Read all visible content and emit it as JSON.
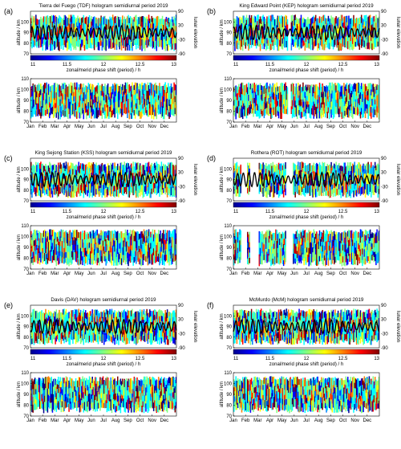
{
  "figure": {
    "colors": {
      "line": "#000000",
      "colormap": [
        "#00008f",
        "#0000ff",
        "#0080ff",
        "#00ffff",
        "#80ff80",
        "#ffff00",
        "#ff8000",
        "#ff0000",
        "#800000"
      ]
    }
  },
  "chart_data": [
    {
      "type": "heatmap",
      "panel_label": "(a)",
      "title": "Tierra del Fuego (TDF) hologram semidiurnal period 2019",
      "ylabel": "altitude / km",
      "ylabel_right": "lunar elevation",
      "colorbar_label": "zonal/merid phase shift (period) / h",
      "colorbar_ticks": [
        "11",
        "11.5",
        "12",
        "12.5",
        "13"
      ],
      "clim": [
        11,
        13
      ],
      "upper_yticks": [
        "70",
        "80",
        "90",
        "100"
      ],
      "right_yticks": [
        "90",
        "30",
        "-30",
        "-90"
      ],
      "lower_yticks": [
        "70",
        "80",
        "90",
        "100",
        "110"
      ],
      "x_ticklabels": [
        "Jan",
        "Feb",
        "Mar",
        "Apr",
        "May",
        "Jun",
        "Jul",
        "Aug",
        "Sep",
        "Oct",
        "Nov",
        "Dec"
      ],
      "ylim_upper": [
        70,
        110
      ],
      "ylim_lower": [
        70,
        110
      ],
      "lunar_elevation_range": [
        -90,
        90
      ]
    },
    {
      "type": "heatmap",
      "panel_label": "(b)",
      "title": "King Edward Point (KEP) hologram semidiurnal period 2019",
      "ylabel": "altitude / km",
      "ylabel_right": "lunar elevation",
      "colorbar_label": "zonal/merid phase shift (period) / h",
      "colorbar_ticks": [
        "11",
        "11.5",
        "12",
        "12.5",
        "13"
      ],
      "clim": [
        11,
        13
      ],
      "upper_yticks": [
        "70",
        "80",
        "90",
        "100"
      ],
      "right_yticks": [
        "90",
        "30",
        "-30",
        "-90"
      ],
      "lower_yticks": [
        "70",
        "80",
        "90",
        "100",
        "110"
      ],
      "x_ticklabels": [
        "Jan",
        "Feb",
        "Mar",
        "Apr",
        "May",
        "Jun",
        "Jul",
        "Aug",
        "Sep",
        "Oct",
        "Nov",
        "Dec"
      ],
      "ylim_upper": [
        70,
        110
      ],
      "ylim_lower": [
        70,
        110
      ],
      "lunar_elevation_range": [
        -90,
        90
      ]
    },
    {
      "type": "heatmap",
      "panel_label": "(c)",
      "title": "King Sejong Station (KSS) hologram semidiurnal period 2019",
      "ylabel": "altitude / km",
      "ylabel_right": "lunar elevation",
      "colorbar_label": "zonal/merid phase shift (period) / h",
      "colorbar_ticks": [
        "11",
        "11.5",
        "12",
        "12.5",
        "13"
      ],
      "clim": [
        11,
        13
      ],
      "upper_yticks": [
        "70",
        "80",
        "90",
        "100"
      ],
      "right_yticks": [
        "90",
        "30",
        "-30",
        "-90"
      ],
      "lower_yticks": [
        "70",
        "80",
        "90",
        "100",
        "110"
      ],
      "x_ticklabels": [
        "Jan",
        "Feb",
        "Mar",
        "Apr",
        "May",
        "Jun",
        "Jul",
        "Aug",
        "Sep",
        "Oct",
        "Nov",
        "Dec"
      ],
      "ylim_upper": [
        70,
        110
      ],
      "ylim_lower": [
        70,
        110
      ],
      "lunar_elevation_range": [
        -90,
        90
      ]
    },
    {
      "type": "heatmap",
      "panel_label": "(d)",
      "title": "Rothera (ROT) hologram semidiurnal period 2019",
      "ylabel": "altitude / km",
      "ylabel_right": "lunar elevation",
      "colorbar_label": "zonal/merid phase shift (period) / h",
      "colorbar_ticks": [
        "11",
        "11.5",
        "12",
        "12.5",
        "13"
      ],
      "clim": [
        11,
        13
      ],
      "upper_yticks": [
        "70",
        "80",
        "90",
        "100"
      ],
      "right_yticks": [
        "90",
        "30",
        "-30",
        "-90"
      ],
      "lower_yticks": [
        "70",
        "80",
        "90",
        "100",
        "110"
      ],
      "x_ticklabels": [
        "Jan",
        "Feb",
        "Mar",
        "Apr",
        "May",
        "Jun",
        "Jul",
        "Aug",
        "Sep",
        "Oct",
        "Nov",
        "Dec"
      ],
      "ylim_upper": [
        70,
        110
      ],
      "ylim_lower": [
        70,
        110
      ],
      "lunar_elevation_range": [
        -90,
        90
      ]
    },
    {
      "type": "heatmap",
      "panel_label": "(e)",
      "title": "Davis (DAV) hologram semidiurnal period 2019",
      "ylabel": "altitude / km",
      "ylabel_right": "lunar elevation",
      "colorbar_label": "zonal/merid phase shift (period) / h",
      "colorbar_ticks": [
        "11",
        "11.5",
        "12",
        "12.5",
        "13"
      ],
      "clim": [
        11,
        13
      ],
      "upper_yticks": [
        "70",
        "80",
        "90",
        "100"
      ],
      "right_yticks": [
        "90",
        "30",
        "-30",
        "-90"
      ],
      "lower_yticks": [
        "70",
        "80",
        "90",
        "100",
        "110"
      ],
      "x_ticklabels": [
        "Jan",
        "Feb",
        "Mar",
        "Apr",
        "May",
        "Jun",
        "Jul",
        "Aug",
        "Sep",
        "Oct",
        "Nov",
        "Dec"
      ],
      "ylim_upper": [
        70,
        110
      ],
      "ylim_lower": [
        70,
        110
      ],
      "lunar_elevation_range": [
        -90,
        90
      ]
    },
    {
      "type": "heatmap",
      "panel_label": "(f)",
      "title": "McMurdo (McM) hologram semidiurnal period 2019",
      "ylabel": "altitude / km",
      "ylabel_right": "lunar elevation",
      "colorbar_label": "zonal/merid phase shift (period) / h",
      "colorbar_ticks": [
        "11",
        "11.5",
        "12",
        "12.5",
        "13"
      ],
      "clim": [
        11,
        13
      ],
      "upper_yticks": [
        "70",
        "80",
        "90",
        "100"
      ],
      "right_yticks": [
        "90",
        "30",
        "-30",
        "-90"
      ],
      "lower_yticks": [
        "70",
        "80",
        "90",
        "100",
        "110"
      ],
      "x_ticklabels": [
        "Jan",
        "Feb",
        "Mar",
        "Apr",
        "May",
        "Jun",
        "Jul",
        "Aug",
        "Sep",
        "Oct",
        "Nov",
        "Dec"
      ],
      "ylim_upper": [
        70,
        110
      ],
      "ylim_lower": [
        70,
        110
      ],
      "lunar_elevation_range": [
        -90,
        90
      ]
    }
  ]
}
